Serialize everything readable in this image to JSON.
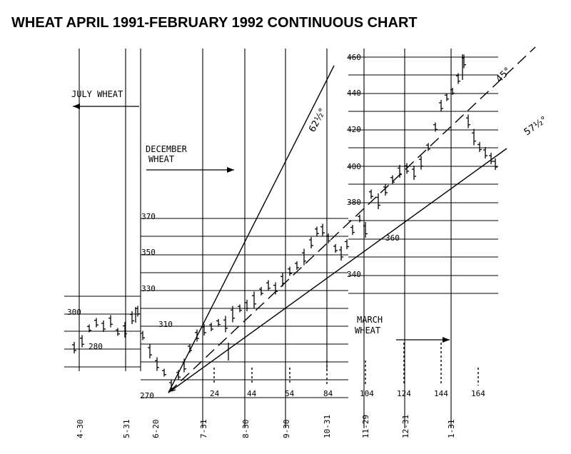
{
  "chart_data": {
    "type": "bar",
    "title": "WHEAT APRIL 1991-FEBRUARY 1992 CONTINUOUS CHART",
    "contract_labels": {
      "july": "JULY WHEAT",
      "december_line1": "DECEMBER",
      "december_line2": "WHEAT",
      "march_line1": "MARCH",
      "march_line2": "WHEAT"
    },
    "date_labels": [
      "4-30",
      "5-31",
      "6-20",
      "7-31",
      "8-30",
      "9-30",
      "10-31",
      "11-29",
      "12-31",
      "1-31"
    ],
    "day_count_labels": [
      "24",
      "44",
      "54",
      "84",
      "104",
      "124",
      "144",
      "164"
    ],
    "price_levels_july": [
      "300",
      "280"
    ],
    "price_levels_december": [
      "370",
      "350",
      "330",
      "310",
      "270"
    ],
    "price_levels_march": [
      "460",
      "440",
      "420",
      "400",
      "380",
      "360",
      "340"
    ],
    "angle_labels": [
      "62½°",
      "45°",
      "57½°"
    ],
    "angles_deg": [
      62.5,
      45,
      57.5
    ],
    "price_range": [
      270,
      460
    ],
    "grid": true,
    "segments": [
      {
        "contract": "July",
        "start": "4-30",
        "end": "6-20",
        "price_low": 278,
        "price_high": 305
      },
      {
        "contract": "December",
        "start": "6-20",
        "end": "10-31",
        "price_low": 270,
        "price_high": 368
      },
      {
        "contract": "March",
        "start": "10-31",
        "end": "2-20",
        "price_low": 340,
        "price_high": 462
      }
    ]
  }
}
